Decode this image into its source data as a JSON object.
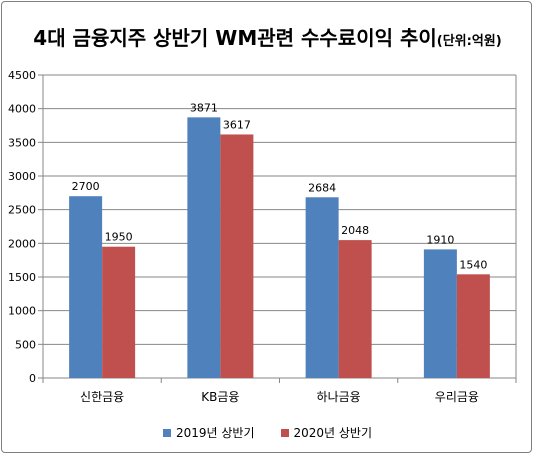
{
  "chart_data": {
    "type": "bar",
    "title": "4대 금융지주 상반기 WM관련 수수료이익 추이",
    "unit_note": "(단위:억원)",
    "categories": [
      "신한금융",
      "KB금융",
      "하나금융",
      "우리금융"
    ],
    "series": [
      {
        "name": "2019년 상반기",
        "values": [
          2700,
          3871,
          2684,
          1910
        ],
        "color": "#4f81bd"
      },
      {
        "name": "2020년 상반기",
        "values": [
          1950,
          3617,
          2048,
          1540
        ],
        "color": "#c0504d"
      }
    ],
    "ylim": [
      0,
      4500
    ],
    "yticks": [
      0,
      500,
      1000,
      1500,
      2000,
      2500,
      3000,
      3500,
      4000,
      4500
    ],
    "grid": true,
    "legend_position": "bottom"
  }
}
